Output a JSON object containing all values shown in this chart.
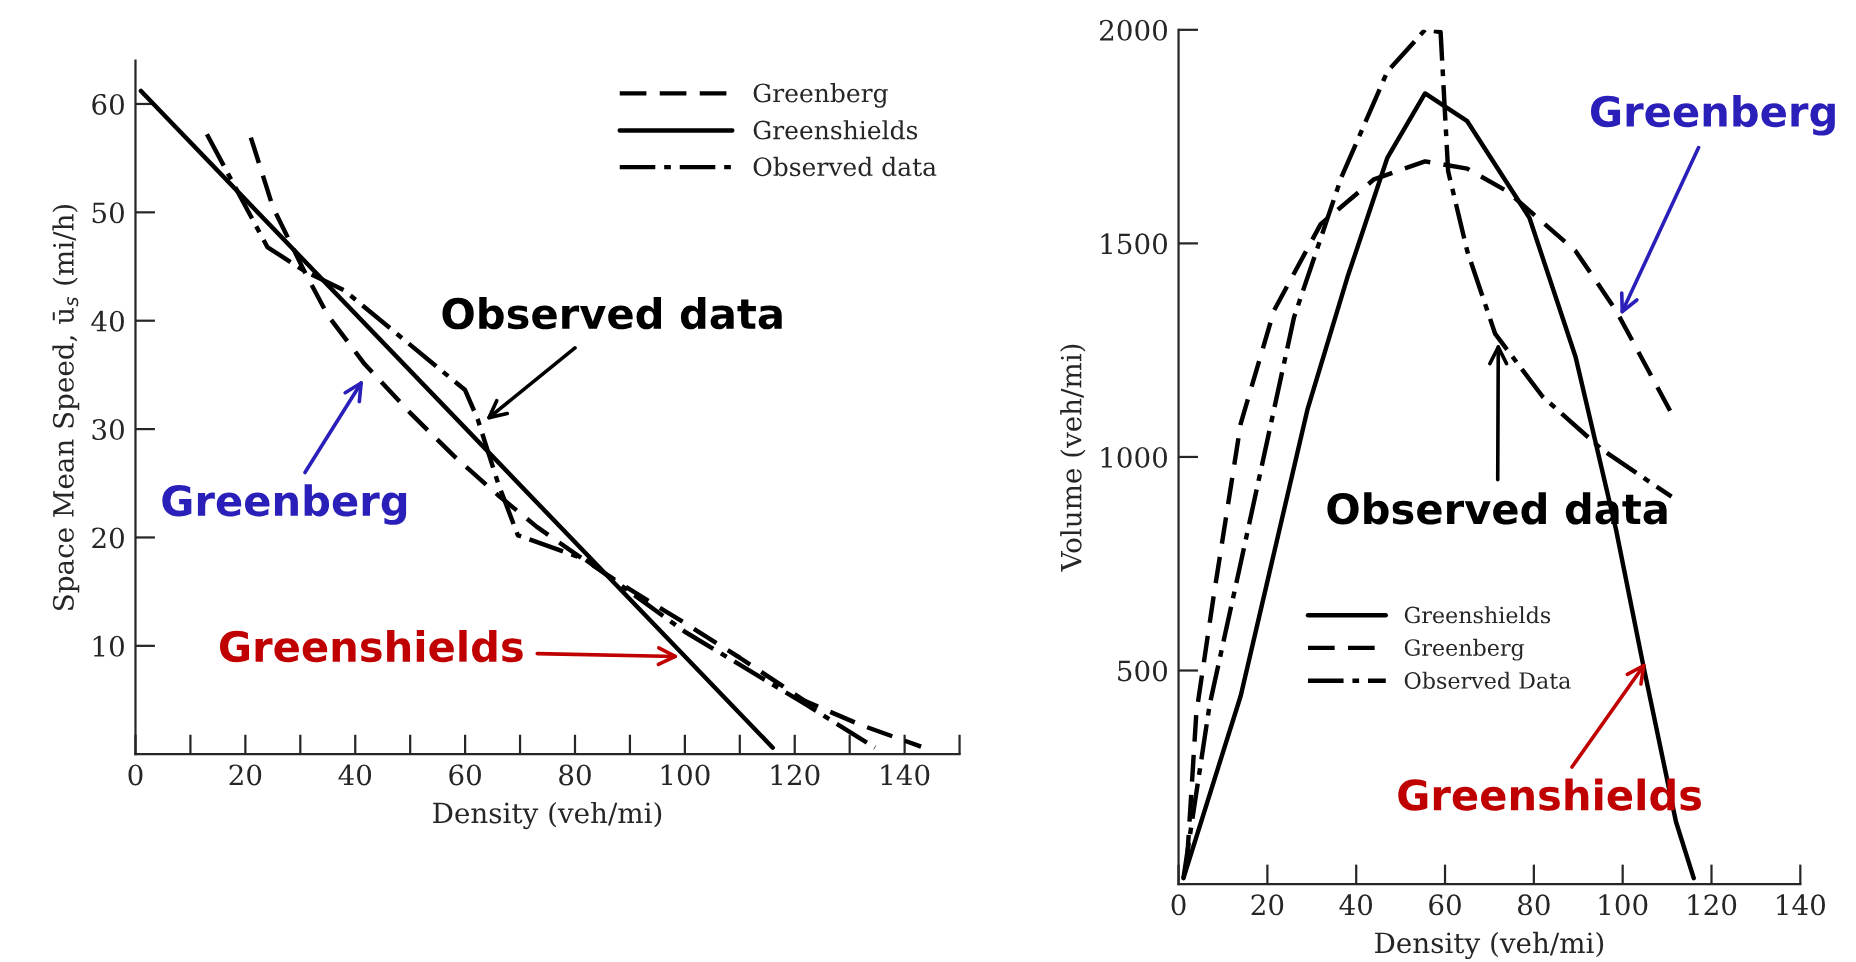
{
  "chart_data": [
    {
      "type": "line",
      "xlabel": "Density (veh/mi)",
      "ylabel": "Space Mean Speed, ū$_{s}$ (mi/h)",
      "xlim": [
        0,
        150
      ],
      "ylim": [
        0,
        64
      ],
      "xticks": [
        0,
        {
          "value": 10,
          "label": null
        },
        20,
        {
          "value": 30,
          "label": null
        },
        40,
        {
          "value": 50,
          "label": null
        },
        60,
        {
          "value": 70,
          "label": null
        },
        80,
        {
          "value": 90,
          "label": null
        },
        100,
        {
          "value": 110,
          "label": null
        },
        120,
        {
          "value": 130,
          "label": null
        },
        140,
        {
          "value": 150,
          "label": null
        }
      ],
      "yticks": [
        10,
        20,
        30,
        40,
        50,
        60
      ],
      "grid": false,
      "legend": "top right",
      "series": [
        {
          "name": "Greenberg",
          "color": "#000000",
          "line_style": "dashed",
          "x": [
            21,
            25,
            30.7,
            35,
            41.7,
            50,
            58,
            66,
            73,
            80.6,
            90,
            100,
            110,
            121.9,
            132,
            143
          ],
          "values": [
            56.9,
            50.5,
            44.6,
            40.5,
            36,
            31.5,
            27.5,
            23.9,
            21,
            18.3,
            15.2,
            12.1,
            8.9,
            4.9,
            2.7,
            0.7
          ]
        },
        {
          "name": "Greenshields",
          "color": "#000000",
          "line_style": "solid",
          "x": [
            1,
            116
          ],
          "values": [
            61.2,
            0.6
          ]
        },
        {
          "name": "Observed data",
          "color": "#000000",
          "line_style": "dashdot",
          "x": [
            13,
            24,
            30.7,
            38,
            60,
            62.3,
            66,
            69.6,
            81.8,
            100,
            122,
            134.6
          ],
          "values": [
            57.2,
            46.8,
            44.6,
            42.8,
            33.6,
            30.9,
            25,
            20.2,
            18,
            11.3,
            4.6,
            0.6
          ]
        }
      ],
      "annotations": [
        {
          "text": "Observed data",
          "x": 63,
          "y": 30.5
        },
        {
          "text": "Greenberg",
          "x": 42,
          "y": 35
        },
        {
          "text": "Greenshields",
          "x": 100,
          "y": 9
        }
      ]
    },
    {
      "type": "line",
      "xlabel": "Density (veh/mi)",
      "ylabel": "Volume (veh/mi)",
      "xlim": [
        0,
        140
      ],
      "ylim": [
        0,
        2000
      ],
      "xticks": [
        0,
        20,
        40,
        60,
        80,
        100,
        120,
        140
      ],
      "yticks": [
        500,
        1000,
        1500,
        2000
      ],
      "grid": false,
      "legend": "bottom",
      "series": [
        {
          "name": "Greenshields",
          "color": "#000000",
          "line_style": "solid",
          "x": [
            1.1,
            14,
            29,
            38,
            47,
            55.5,
            65,
            79,
            89.4,
            98.5,
            104.5,
            112,
            116
          ],
          "values": [
            14,
            441,
            1110,
            1420,
            1700,
            1851,
            1786,
            1560,
            1234,
            830,
            519,
            146,
            14
          ]
        },
        {
          "name": "Greenberg",
          "color": "#000000",
          "line_style": "dashed",
          "x": [
            1.9,
            4,
            7.9,
            14,
            21.5,
            32,
            44,
            55.5,
            65,
            74,
            89.4,
            98.5,
            111
          ],
          "values": [
            53,
            400,
            674,
            1078,
            1343,
            1545,
            1650,
            1692,
            1675,
            1622,
            1482,
            1343,
            1102
          ]
        },
        {
          "name": "Observed Data",
          "color": "#000000",
          "line_style": "dashdot",
          "x": [
            1.1,
            7,
            14,
            26,
            36.6,
            47,
            55.5,
            59,
            60.7,
            65,
            71.3,
            82,
            95.5,
            111
          ],
          "values": [
            14,
            420,
            752,
            1327,
            1653,
            1902,
            2000,
            1995,
            1669,
            1482,
            1288,
            1141,
            1016,
            907
          ]
        }
      ],
      "annotations": [
        {
          "text": "Greenberg",
          "x": 99,
          "y": 1320
        },
        {
          "text": "Observed data",
          "x": 72,
          "y": 1280
        },
        {
          "text": "Greenshields",
          "x": 106,
          "y": 530
        }
      ]
    }
  ]
}
